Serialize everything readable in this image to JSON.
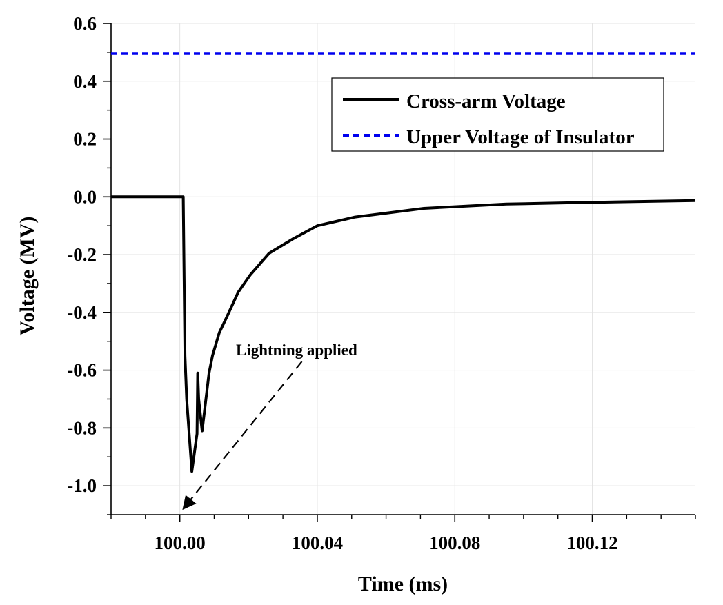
{
  "chart_data": {
    "type": "line",
    "title": "",
    "xlabel": "Time (ms)",
    "ylabel": "Voltage (MV)",
    "xlim": [
      99.98,
      100.15
    ],
    "ylim": [
      -1.1,
      0.6
    ],
    "x_ticks": [
      100.0,
      100.04,
      100.08,
      100.12
    ],
    "x_tick_labels": [
      "100.00",
      "100.04",
      "100.08",
      "100.12"
    ],
    "x_minor_step": 0.01,
    "y_ticks": [
      -1.0,
      -0.8,
      -0.6,
      -0.4,
      -0.2,
      0.0,
      0.2,
      0.4,
      0.6
    ],
    "y_tick_labels": [
      "-1.0",
      "-0.8",
      "-0.6",
      "-0.4",
      "-0.2",
      "0.0",
      "0.2",
      "0.4",
      "0.6"
    ],
    "y_minor_step": 0.1,
    "grid": true,
    "legend_position": "top-right",
    "series": [
      {
        "name": "Cross-arm Voltage",
        "color": "#000000",
        "style": "solid",
        "x": [
          99.98,
          100.001,
          100.0015,
          100.002,
          100.0035,
          100.005,
          100.0052,
          100.0055,
          100.0065,
          100.0085,
          100.0095,
          100.0115,
          100.0135,
          100.017,
          100.0205,
          100.026,
          100.033,
          100.04,
          100.051,
          100.071,
          100.095,
          100.115,
          100.15
        ],
        "y": [
          0.0,
          0.0,
          -0.55,
          -0.7,
          -0.95,
          -0.82,
          -0.61,
          -0.7,
          -0.81,
          -0.61,
          -0.55,
          -0.47,
          -0.42,
          -0.33,
          -0.27,
          -0.195,
          -0.145,
          -0.1,
          -0.07,
          -0.04,
          -0.025,
          -0.02,
          -0.013
        ]
      },
      {
        "name": "Upper Voltage of Insulator",
        "color": "#0000ee",
        "style": "dashed",
        "x": [
          99.98,
          100.15
        ],
        "y": [
          0.495,
          0.495
        ]
      }
    ],
    "annotations": [
      {
        "text": "Lightning applied",
        "arrow_from": [
          100.0355,
          -0.57
        ],
        "arrow_to": [
          100.001,
          -1.08
        ]
      }
    ]
  }
}
